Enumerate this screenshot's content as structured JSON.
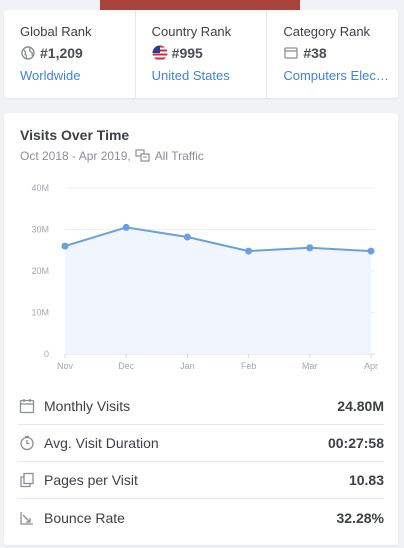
{
  "ranks": [
    {
      "title": "Global Rank",
      "icon": "globe-icon",
      "value": "#1,209",
      "link": "Worldwide"
    },
    {
      "title": "Country Rank",
      "icon": "us-flag-icon",
      "value": "#995",
      "link": "United States"
    },
    {
      "title": "Category Rank",
      "icon": "category-icon",
      "value": "#38",
      "link": "Computers Electronics and Technology"
    }
  ],
  "visits": {
    "title": "Visits Over Time",
    "date_range": "Oct 2018 - Apr 2019,",
    "traffic_label": "All Traffic"
  },
  "chart_data": {
    "type": "area",
    "categories": [
      "Nov",
      "Dec",
      "Jan",
      "Feb",
      "Mar",
      "Apr"
    ],
    "values": [
      26,
      30.5,
      28.2,
      24.8,
      25.6,
      24.8
    ],
    "y_ticks": [
      "0",
      "10M",
      "20M",
      "30M",
      "40M"
    ],
    "ylim": [
      0,
      40
    ],
    "grid": true,
    "line_color": "#6a9fe0",
    "fill_color": "#f1f5fd"
  },
  "metrics": [
    {
      "icon": "calendar-icon",
      "label": "Monthly Visits",
      "value": "24.80M"
    },
    {
      "icon": "clock-icon",
      "label": "Avg. Visit Duration",
      "value": "00:27:58"
    },
    {
      "icon": "pages-icon",
      "label": "Pages per Visit",
      "value": "10.83"
    },
    {
      "icon": "bounce-icon",
      "label": "Bounce Rate",
      "value": "32.28%"
    }
  ]
}
